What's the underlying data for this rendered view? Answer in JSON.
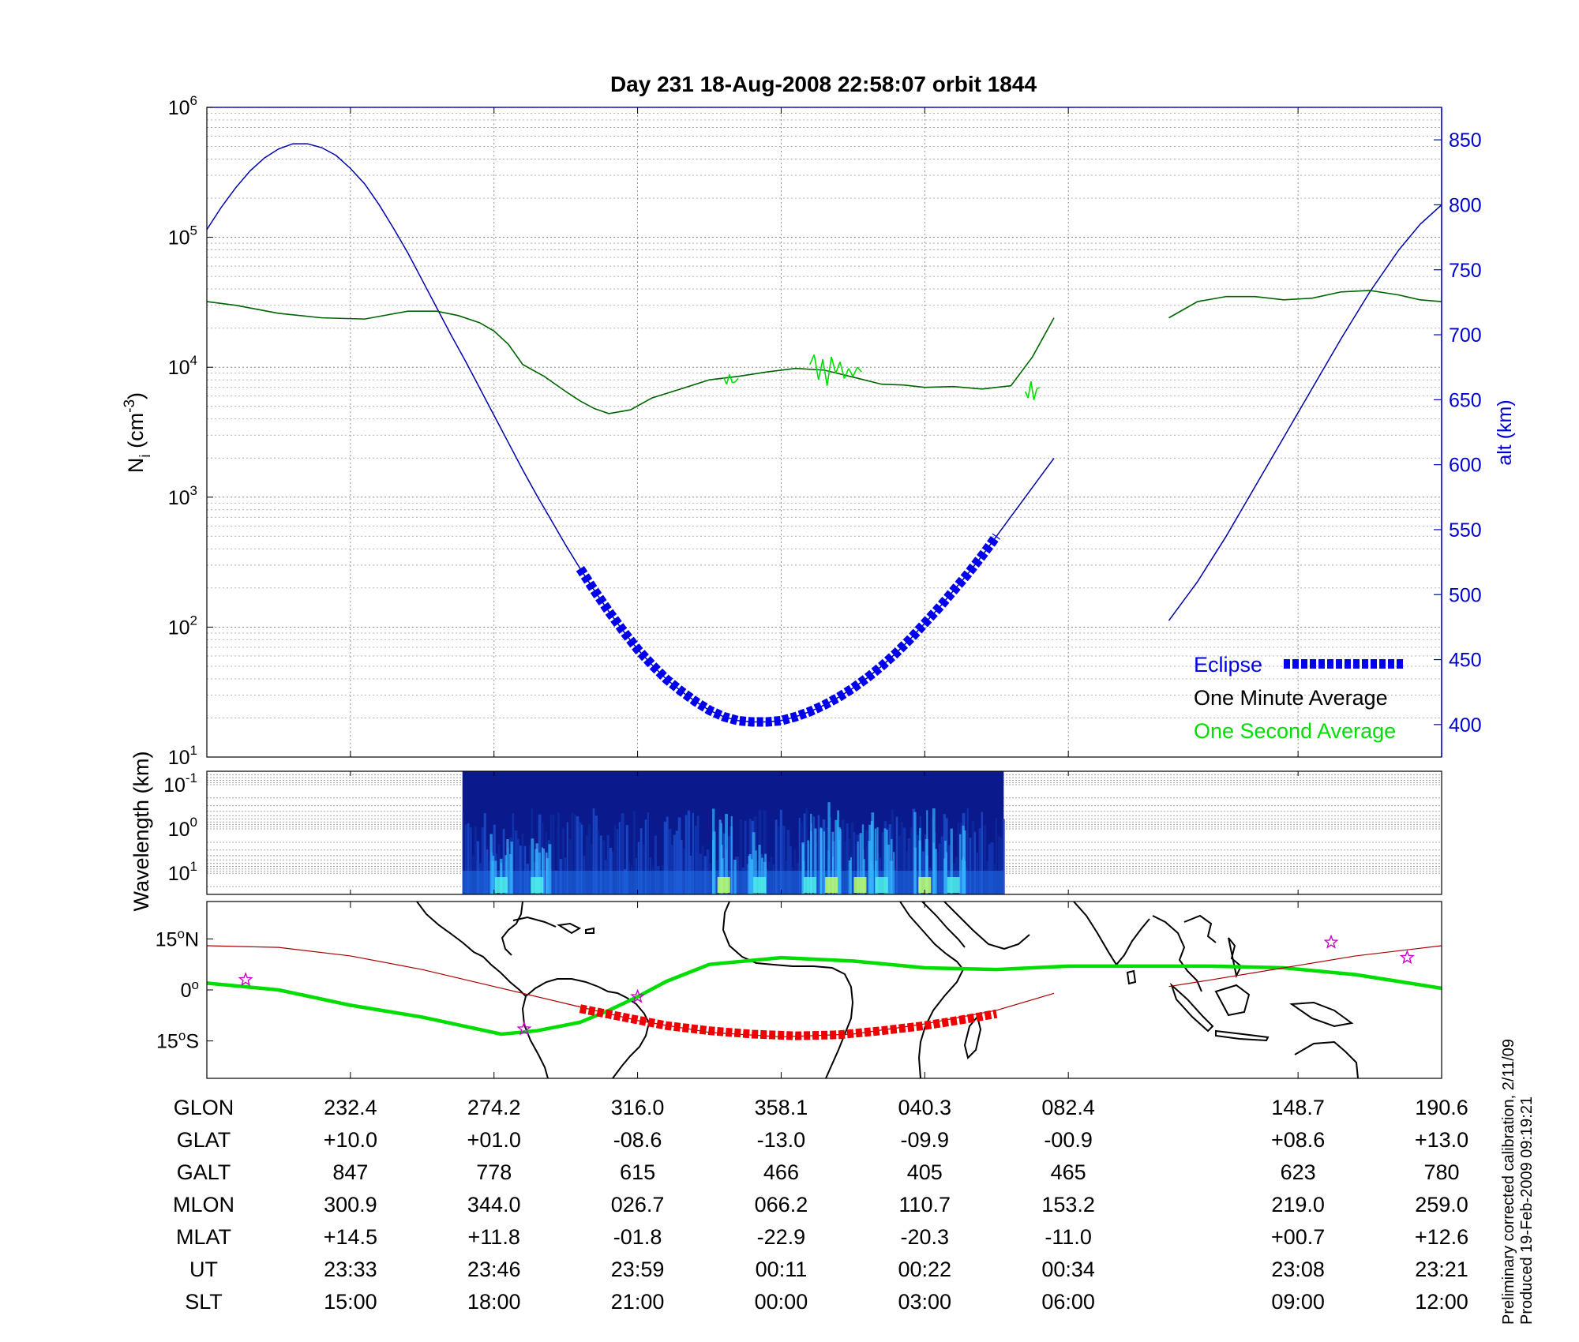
{
  "title": "Day 231  18-Aug-2008 22:58:07   orbit 1844",
  "colors": {
    "eclipse": "#0000ee",
    "one_minute": "#006400",
    "one_second": "#00dd00",
    "altitude_line": "#0000aa",
    "right_axis": "#0000cc",
    "track": "#00dd00",
    "track_eclipse": "#ee0000",
    "magnetic_equator": "#aa0000",
    "stars": "#cc00cc",
    "coast": "#000000"
  },
  "chart_data": [
    {
      "type": "line",
      "panel": "density",
      "ylabel": "N",
      "ylabel_sub": "i",
      "ylabel_unit": " (cm",
      "ylabel_unit_sup": "-3",
      "ylabel_close": ")",
      "yscale": "log",
      "ylim": [
        10,
        1000000
      ],
      "yticks": [
        {
          "value": 1000000,
          "base": "10",
          "exp": "6"
        },
        {
          "value": 100000,
          "base": "10",
          "exp": "5"
        },
        {
          "value": 10000,
          "base": "10",
          "exp": "4"
        },
        {
          "value": 1000,
          "base": "10",
          "exp": "3"
        },
        {
          "value": 100,
          "base": "10",
          "exp": "2"
        },
        {
          "value": 10,
          "base": "10",
          "exp": "1"
        }
      ],
      "y2label": "alt (km)",
      "y2lim": [
        375,
        875
      ],
      "y2ticks": [
        "850",
        "800",
        "750",
        "700",
        "650",
        "600",
        "550",
        "500",
        "450",
        "400"
      ],
      "y2tick_values": [
        850,
        800,
        750,
        700,
        650,
        600,
        550,
        500,
        450,
        400
      ],
      "xlim": [
        0,
        8.6
      ],
      "grid": true,
      "legend_position": "bottom-right",
      "legend": [
        {
          "label": "Eclipse",
          "color_key": "eclipse",
          "marker": "dashed-thick"
        },
        {
          "label": "One Minute Average",
          "color_key": "one_minute"
        },
        {
          "label": "One Second Average",
          "color_key": "one_second"
        }
      ],
      "series": [
        {
          "name": "One Minute Average",
          "axis": "left",
          "x": [
            0.0,
            0.2,
            0.5,
            0.8,
            1.1,
            1.4,
            1.6,
            1.75,
            1.9,
            2.0,
            2.1,
            2.2,
            2.35,
            2.5,
            2.6,
            2.7,
            2.8,
            2.95,
            3.1,
            3.3,
            3.5,
            3.7,
            3.9,
            4.1,
            4.3,
            4.5,
            4.7,
            4.85,
            5.0,
            5.2,
            5.4,
            5.6,
            5.75,
            5.9
          ],
          "y": [
            32000,
            30000,
            26000,
            24000,
            23500,
            27000,
            27000,
            25000,
            22000,
            19000,
            15000,
            10500,
            8500,
            6500,
            5500,
            4800,
            4400,
            4700,
            5800,
            6800,
            8000,
            8500,
            9200,
            9800,
            9500,
            8400,
            7400,
            7300,
            7000,
            7100,
            6800,
            7200,
            12000,
            24000
          ]
        },
        {
          "name": "One Minute Average (second segment)",
          "axis": "left",
          "x": [
            6.7,
            6.9,
            7.1,
            7.3,
            7.5,
            7.7,
            7.9,
            8.1,
            8.3,
            8.45,
            8.6
          ],
          "y": [
            24000,
            32000,
            35000,
            35000,
            33000,
            34000,
            38000,
            39000,
            36000,
            33000,
            32000
          ]
        },
        {
          "name": "One Second Average",
          "axis": "left",
          "x": [
            3.6,
            3.62,
            3.64,
            3.66,
            3.68,
            3.7,
            4.2,
            4.23,
            4.26,
            4.29,
            4.32,
            4.35,
            4.38,
            4.41,
            4.44,
            4.47,
            4.5,
            4.53,
            4.56,
            5.7,
            5.72,
            5.74,
            5.76,
            5.78,
            5.8
          ],
          "y": [
            8300,
            7400,
            8800,
            7600,
            7700,
            8200,
            10500,
            12500,
            8000,
            11500,
            7200,
            12000,
            9000,
            11000,
            8200,
            9800,
            8500,
            10000,
            9200,
            6500,
            5800,
            7800,
            5600,
            6800,
            7000
          ]
        },
        {
          "name": "Altitude",
          "axis": "right",
          "x": [
            0.0,
            0.1,
            0.2,
            0.3,
            0.4,
            0.5,
            0.6,
            0.7,
            0.8,
            0.9,
            1.0,
            1.1,
            1.2,
            1.3,
            1.4,
            1.5,
            1.6,
            1.7,
            1.8,
            1.9,
            2.0,
            2.1,
            2.2,
            2.3,
            2.4,
            2.5,
            2.6,
            2.7,
            2.8,
            2.9,
            3.0,
            3.1,
            3.2,
            3.3,
            3.4,
            3.5,
            3.6,
            3.7,
            3.8,
            3.9,
            4.0,
            4.1,
            4.2,
            4.3,
            4.4,
            4.5,
            4.6,
            4.7,
            4.8,
            4.9,
            5.0,
            5.1,
            5.2,
            5.3,
            5.4,
            5.5,
            5.6,
            5.7,
            5.8,
            5.9
          ],
          "y": [
            781,
            798,
            813,
            826,
            836,
            843,
            847,
            847,
            844,
            838,
            828,
            816,
            800,
            782,
            763,
            742,
            721,
            700,
            680,
            659,
            638,
            617,
            596,
            576,
            557,
            538,
            520,
            503,
            487,
            472,
            458,
            446,
            435,
            426,
            418,
            411,
            406,
            403,
            402,
            402,
            403,
            406,
            410,
            415,
            421,
            428,
            436,
            445,
            455,
            466,
            478,
            490,
            503,
            516,
            530,
            545,
            560,
            575,
            590,
            605
          ]
        },
        {
          "name": "Altitude (second segment)",
          "axis": "right",
          "x": [
            6.7,
            6.9,
            7.1,
            7.3,
            7.5,
            7.7,
            7.9,
            8.1,
            8.3,
            8.45,
            8.6
          ],
          "y": [
            480,
            510,
            545,
            583,
            621,
            659,
            697,
            733,
            765,
            785,
            800
          ]
        },
        {
          "name": "Eclipse",
          "axis": "right",
          "x_start": 2.6,
          "x_end": 5.5
        }
      ]
    },
    {
      "type": "heatmap",
      "panel": "wavelength",
      "ylabel": "Wavelength (km)",
      "yscale": "log",
      "ylim": [
        0.05,
        30
      ],
      "yticks": [
        {
          "value": 0.1,
          "base": "10",
          "exp": "-1"
        },
        {
          "value": 1,
          "base": "10",
          "exp": "0"
        },
        {
          "value": 10,
          "base": "10",
          "exp": "1"
        }
      ],
      "x_start": 1.78,
      "x_end": 5.55,
      "active_bursts": [
        {
          "x": 2.05,
          "intensity": 0.5
        },
        {
          "x": 2.3,
          "intensity": 0.4
        },
        {
          "x": 3.6,
          "intensity": 0.9
        },
        {
          "x": 3.85,
          "intensity": 0.5
        },
        {
          "x": 4.2,
          "intensity": 0.8
        },
        {
          "x": 4.35,
          "intensity": 1.0
        },
        {
          "x": 4.55,
          "intensity": 0.9
        },
        {
          "x": 4.7,
          "intensity": 0.85
        },
        {
          "x": 5.0,
          "intensity": 0.9
        },
        {
          "x": 5.2,
          "intensity": 0.7
        }
      ]
    },
    {
      "type": "map",
      "panel": "ground-track",
      "yticks": [
        "15",
        "0",
        "15"
      ],
      "ytick_suffix": [
        "N",
        "",
        "S"
      ],
      "ytick_values": [
        15,
        0,
        -15
      ],
      "ylim": [
        -26,
        26
      ],
      "track": {
        "x": [
          0.0,
          0.5,
          1.0,
          1.5,
          2.05,
          2.3,
          2.6,
          2.8,
          3.0,
          3.2,
          3.5,
          4.0,
          4.5,
          5.0,
          5.5,
          6.0,
          6.5,
          7.0,
          7.5,
          8.0,
          8.6
        ],
        "y": [
          2,
          0,
          -4.5,
          -8,
          -13,
          -12,
          -9.5,
          -6,
          -2,
          2.5,
          7.5,
          9.5,
          8.5,
          6.5,
          6,
          7,
          7,
          7,
          6.5,
          4.5,
          0.5
        ]
      },
      "eclipse_track": {
        "x": [
          2.6,
          2.9,
          3.2,
          3.5,
          3.8,
          4.1,
          4.4,
          4.7,
          5.0,
          5.3,
          5.5
        ],
        "y": [
          -5.5,
          -8,
          -10.5,
          -12,
          -13,
          -13.5,
          -13.2,
          -12,
          -10.5,
          -8.5,
          -7
        ]
      },
      "magnetic_equator": {
        "x": [
          0.0,
          0.5,
          1.0,
          1.5,
          2.0,
          2.5,
          3.0,
          3.5,
          4.0,
          4.5,
          5.0,
          5.5,
          5.9,
          6.7,
          7.0,
          7.5,
          8.0,
          8.6
        ],
        "y": [
          13,
          12.5,
          10,
          6,
          1,
          -4,
          -9,
          -12.5,
          -13.8,
          -13,
          -10,
          -6,
          -1,
          1,
          3,
          6.5,
          10,
          13
        ]
      },
      "stars": [
        {
          "x": 0.27,
          "y": 3
        },
        {
          "x": 2.21,
          "y": -11.5
        },
        {
          "x": 3.0,
          "y": -2
        },
        {
          "x": 7.83,
          "y": 14
        },
        {
          "x": 8.36,
          "y": 9.5
        }
      ]
    },
    {
      "type": "table",
      "panel": "orbit-parameters",
      "row_labels": [
        "GLON",
        "GLAT",
        "GALT",
        "MLON",
        "MLAT",
        "UT",
        "SLT"
      ],
      "columns": [
        {
          "x": 1.0,
          "values": [
            "232.4",
            "+10.0",
            "847",
            "300.9",
            "+14.5",
            "23:33",
            "15:00"
          ]
        },
        {
          "x": 2.0,
          "values": [
            "274.2",
            "+01.0",
            "778",
            "344.0",
            "+11.8",
            "23:46",
            "18:00"
          ]
        },
        {
          "x": 3.0,
          "values": [
            "316.0",
            "-08.6",
            "615",
            "026.7",
            "-01.8",
            "23:59",
            "21:00"
          ]
        },
        {
          "x": 4.0,
          "values": [
            "358.1",
            "-13.0",
            "466",
            "066.2",
            "-22.9",
            "00:11",
            "00:00"
          ]
        },
        {
          "x": 5.0,
          "values": [
            "040.3",
            "-09.9",
            "405",
            "110.7",
            "-20.3",
            "00:22",
            "03:00"
          ]
        },
        {
          "x": 6.0,
          "values": [
            "082.4",
            "-00.9",
            "465",
            "153.2",
            "-11.0",
            "00:34",
            "06:00"
          ]
        },
        {
          "x": 7.6,
          "values": [
            "148.7",
            "+08.6",
            "623",
            "219.0",
            "+00.7",
            "23:08",
            "09:00"
          ]
        },
        {
          "x": 8.6,
          "values": [
            "190.6",
            "+13.0",
            "780",
            "259.0",
            "+12.6",
            "23:21",
            "12:00"
          ]
        }
      ]
    }
  ],
  "notes": [
    "Preliminary corrected calibration, 2/11/09",
    "Produced 19-Feb-2009 09:19:21"
  ]
}
